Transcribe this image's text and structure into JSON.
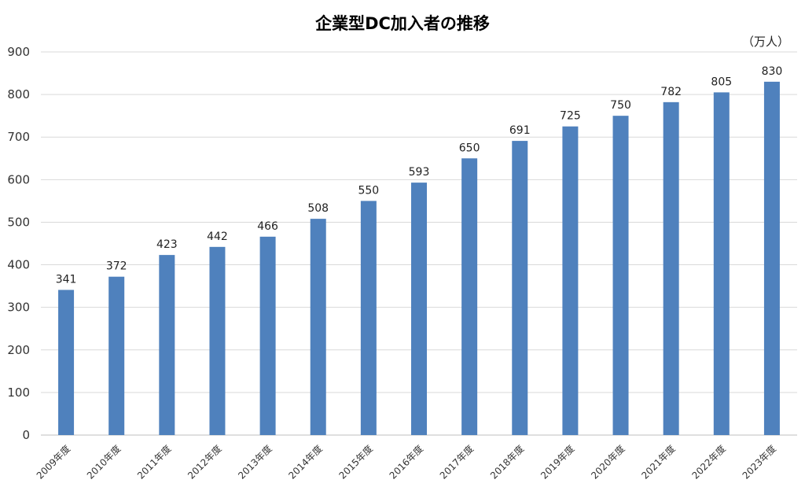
{
  "chart_data": {
    "type": "bar",
    "title": "企業型DC加入者の推移",
    "unit": "（万人）",
    "xlabel": "",
    "ylabel": "",
    "ylim": [
      0,
      900
    ],
    "yticks": [
      0,
      100,
      200,
      300,
      400,
      500,
      600,
      700,
      800,
      900
    ],
    "grid": true,
    "legend": "none",
    "bar_color": "#4f81bd",
    "categories": [
      "2009年度",
      "2010年度",
      "2011年度",
      "2012年度",
      "2013年度",
      "2014年度",
      "2015年度",
      "2016年度",
      "2017年度",
      "2018年度",
      "2019年度",
      "2020年度",
      "2021年度",
      "2022年度",
      "2023年度"
    ],
    "values": [
      341,
      372,
      423,
      442,
      466,
      508,
      550,
      593,
      650,
      691,
      725,
      750,
      782,
      805,
      830
    ]
  }
}
